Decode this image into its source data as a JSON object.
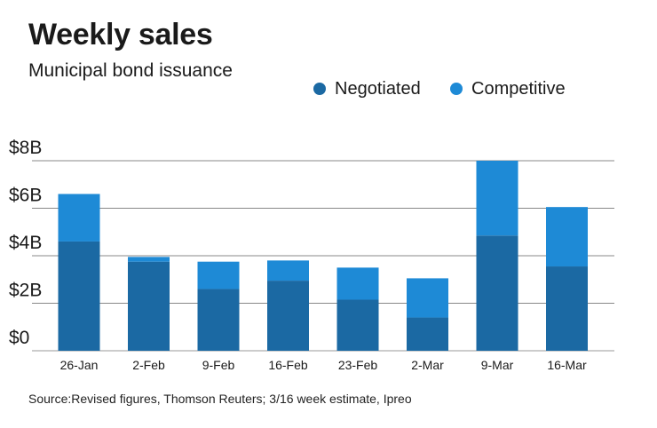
{
  "chart_data": {
    "type": "bar",
    "stacked": true,
    "title": "Weekly sales",
    "subtitle": "Municipal bond issuance",
    "categories": [
      "26-Jan",
      "2-Feb",
      "9-Feb",
      "16-Feb",
      "23-Feb",
      "2-Mar",
      "9-Mar",
      "16-Mar"
    ],
    "series": [
      {
        "name": "Negotiated",
        "color": "#1b69a3",
        "values": [
          4.6,
          3.75,
          2.6,
          2.95,
          2.15,
          1.4,
          4.85,
          3.55
        ]
      },
      {
        "name": "Competitive",
        "color": "#1e8ad6",
        "values": [
          2.0,
          0.2,
          1.15,
          0.85,
          1.35,
          1.65,
          3.15,
          2.5
        ]
      }
    ],
    "yticks": [
      {
        "value": 0,
        "label": "$0"
      },
      {
        "value": 2,
        "label": "$2B"
      },
      {
        "value": 4,
        "label": "$4B"
      },
      {
        "value": 6,
        "label": "$6B"
      },
      {
        "value": 8,
        "label": "$8B"
      }
    ],
    "ylim": [
      0,
      8
    ],
    "xlabel": "",
    "ylabel": "",
    "legend_position": "top-right",
    "grid": true
  },
  "source": "Source:Revised figures, Thomson Reuters; 3/16 week estimate, Ipreo"
}
